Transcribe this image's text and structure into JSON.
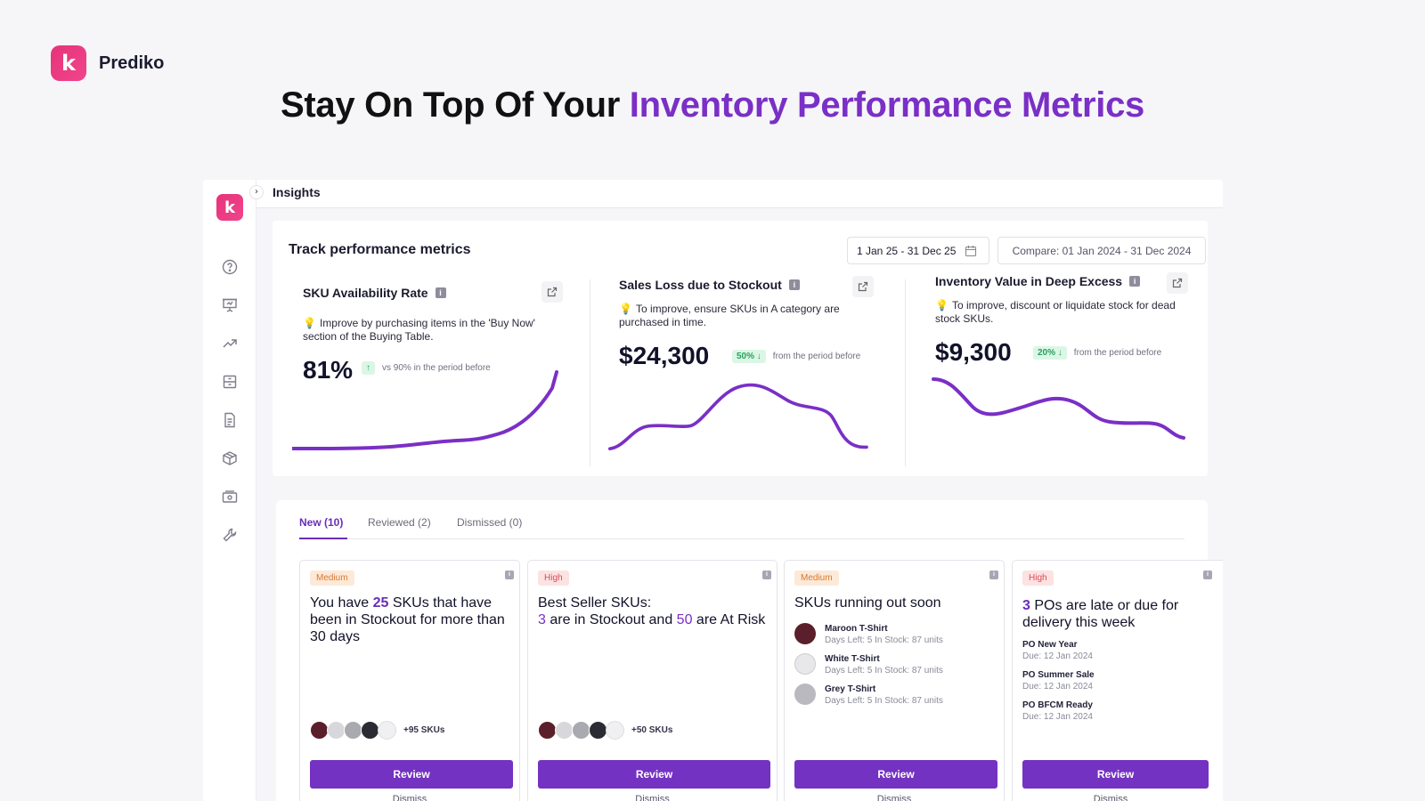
{
  "brand": {
    "logo_letter": "k",
    "name": "Prediko"
  },
  "headline": {
    "lead": "Stay On Top Of Your ",
    "accent": "Inventory Performance Metrics"
  },
  "app": {
    "logo_letter": "k",
    "collapse_glyph": "›",
    "page_title": "Insights",
    "sidebar_icons": [
      "help-icon",
      "presentation-icon",
      "trend-up-icon",
      "drawer-icon",
      "document-icon",
      "box-icon",
      "cash-icon",
      "tools-icon"
    ]
  },
  "metrics": {
    "title": "Track performance metrics",
    "date_range": "1 Jan 25 - 31 Dec 25",
    "compare_range": "Compare: 01 Jan 2024 - 31 Dec 2024",
    "cards": [
      {
        "title": "SKU Availability Rate",
        "tip": "Improve by purchasing items in the 'Buy Now' section of the Buying Table.",
        "value": "81%",
        "delta": "↑",
        "delta_text": "vs 90% in the period before"
      },
      {
        "title": "Sales Loss due to Stockout",
        "tip": "To improve, ensure SKUs in A category are purchased in time.",
        "value": "$24,300",
        "delta": "50% ↓",
        "delta_text": "from the period before"
      },
      {
        "title": "Inventory Value in Deep Excess",
        "tip": "To improve, discount or liquidate stock for dead stock SKUs.",
        "value": "$9,300",
        "delta": "20% ↓",
        "delta_text": "from the period before"
      }
    ]
  },
  "tabs": [
    {
      "label": "New (10)",
      "active": true
    },
    {
      "label": "Reviewed (2)",
      "active": false
    },
    {
      "label": "Dismissed (0)",
      "active": false
    }
  ],
  "insight_cards": [
    {
      "priority": "Medium",
      "heading": {
        "pre": "You have ",
        "n1": "25",
        "post": " SKUs that have been in Stockout for more than 30 days"
      },
      "more": "+95 SKUs",
      "review": "Review",
      "dismiss": "Dismiss"
    },
    {
      "priority": "High",
      "heading": {
        "line1": "Best Seller SKUs:",
        "n1": "3",
        "mid": " are in Stockout and ",
        "n2": "50",
        "post": " are At Risk"
      },
      "more": "+50 SKUs",
      "review": "Review",
      "dismiss": "Dismiss"
    },
    {
      "priority": "Medium",
      "heading": "SKUs running out soon",
      "skus": [
        {
          "name": "Maroon T-Shirt",
          "meta": "Days Left: 5 In Stock: 87 units",
          "color": "#5a1f2a"
        },
        {
          "name": "White T-Shirt",
          "meta": "Days Left: 5 In Stock: 87 units",
          "color": "#e8e8ea"
        },
        {
          "name": "Grey T-Shirt",
          "meta": "Days Left: 5 In Stock: 87 units",
          "color": "#b9b9bf"
        }
      ],
      "review": "Review",
      "dismiss": "Dismiss"
    },
    {
      "priority": "High",
      "heading": {
        "n1": "3",
        "post": " POs are late or due for delivery this week"
      },
      "pos": [
        {
          "name": "PO New Year",
          "due": "Due: 12 Jan 2024"
        },
        {
          "name": "PO Summer Sale",
          "due": "Due: 12 Jan 2024"
        },
        {
          "name": "PO BFCM Ready",
          "due": "Due: 12 Jan 2024"
        }
      ],
      "review": "Review",
      "dismiss": "Dismiss"
    }
  ],
  "colors": {
    "accent": "#7432c2",
    "brand_pink": "#e6337a",
    "line": "#7a2fc6",
    "positive": "#25a35d"
  },
  "avatar_colors": [
    "#5a1f2a",
    "#d8d8dc",
    "#a9a9b0",
    "#2b2b33",
    "#f0f0f2"
  ]
}
